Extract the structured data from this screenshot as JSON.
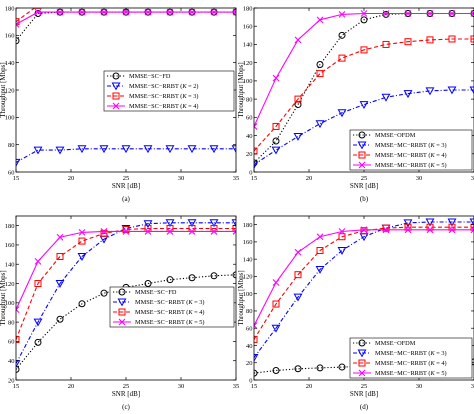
{
  "chart_data": [
    {
      "type": "line",
      "caption": "(a)",
      "xlabel": "SNR [dB]",
      "ylabel": "Throughput [Mbps]",
      "xlim": [
        15,
        35
      ],
      "ylim": [
        60,
        180
      ],
      "xticks": [
        15,
        20,
        25,
        30,
        35
      ],
      "yticks": [
        60,
        80,
        100,
        120,
        140,
        160,
        180
      ],
      "grid": false,
      "legend_position": "center-right",
      "series": [
        {
          "name": "MMSE−SC−FD",
          "color": "#000000",
          "marker": "circle",
          "dash": "dotted",
          "x": [
            15,
            17,
            19,
            21,
            23,
            25,
            27,
            29,
            31,
            33,
            35
          ],
          "y": [
            156,
            176,
            177,
            177,
            177,
            177,
            177,
            177,
            177,
            177,
            177
          ]
        },
        {
          "name": "MMSE−SC−RRBT (K = 2)",
          "color": "#0000ff",
          "marker": "triangle-down",
          "dash": "dashdot",
          "x": [
            15,
            17,
            19,
            21,
            23,
            25,
            27,
            29,
            31,
            33,
            35
          ],
          "y": [
            67,
            76,
            76,
            77,
            77,
            77,
            77,
            77,
            77,
            77,
            77
          ]
        },
        {
          "name": "MMSE−SC−RRBT (K = 3)",
          "color": "#ff0000",
          "marker": "square",
          "dash": "dashed",
          "x": [
            15,
            17,
            19,
            21,
            23,
            25,
            27,
            29,
            31,
            33,
            35
          ],
          "y": [
            170,
            182,
            183,
            183,
            183,
            183,
            183,
            183,
            183,
            183,
            183
          ]
        },
        {
          "name": "MMSE−SC−RRBT (K = 4)",
          "color": "#ff00ff",
          "marker": "x",
          "dash": "solid",
          "x": [
            15,
            17,
            19,
            21,
            23,
            25,
            27,
            29,
            31,
            33,
            35
          ],
          "y": [
            168,
            177,
            177,
            177,
            177,
            177,
            177,
            177,
            177,
            177,
            177
          ]
        }
      ]
    },
    {
      "type": "line",
      "caption": "(b)",
      "xlabel": "SNR [dB]",
      "ylabel": "Throughput [Mbps]",
      "xlim": [
        15,
        35
      ],
      "ylim": [
        0,
        180
      ],
      "xticks": [
        15,
        20,
        25,
        30,
        35
      ],
      "yticks": [
        0,
        20,
        40,
        60,
        80,
        100,
        120,
        140,
        160,
        180
      ],
      "grid": false,
      "legend_position": "bottom-right",
      "series": [
        {
          "name": "MMSE−OFDM",
          "color": "#000000",
          "marker": "circle",
          "dash": "dotted",
          "x": [
            15,
            17,
            19,
            21,
            23,
            25,
            27,
            29,
            31,
            33,
            35
          ],
          "y": [
            10,
            34,
            74,
            118,
            150,
            167,
            173,
            174,
            174,
            174,
            174
          ]
        },
        {
          "name": "MMSE−MC−RRBT (K = 3)",
          "color": "#0000ff",
          "marker": "triangle-down",
          "dash": "dashdot",
          "x": [
            15,
            17,
            19,
            21,
            23,
            25,
            27,
            29,
            31,
            33,
            35
          ],
          "y": [
            8,
            24,
            39,
            53,
            65,
            74,
            82,
            86,
            89,
            90,
            90
          ]
        },
        {
          "name": "MMSE−MC−RRBT (K = 4)",
          "color": "#ff0000",
          "marker": "square",
          "dash": "dashed",
          "x": [
            15,
            17,
            19,
            21,
            23,
            25,
            27,
            29,
            31,
            33,
            35
          ],
          "y": [
            23,
            50,
            80,
            108,
            125,
            134,
            140,
            143,
            145,
            146,
            146
          ]
        },
        {
          "name": "MMSE−MC−RRBT (K = 5)",
          "color": "#ff00ff",
          "marker": "x",
          "dash": "solid",
          "x": [
            15,
            17,
            19,
            21,
            23,
            25,
            27,
            29,
            31,
            33,
            35
          ],
          "y": [
            50,
            103,
            145,
            167,
            173,
            174,
            174,
            174,
            174,
            174,
            174
          ]
        }
      ]
    },
    {
      "type": "line",
      "caption": "(c)",
      "xlabel": "SNR [dB]",
      "ylabel": "Throughput [Mbps]",
      "xlim": [
        15,
        35
      ],
      "ylim": [
        20,
        190
      ],
      "xticks": [
        15,
        20,
        25,
        30,
        35
      ],
      "yticks": [
        20,
        40,
        60,
        80,
        100,
        120,
        140,
        160,
        180
      ],
      "grid": false,
      "legend_position": "bottom-right",
      "series": [
        {
          "name": "MMSE−SC−FD",
          "color": "#000000",
          "marker": "circle",
          "dash": "dotted",
          "x": [
            15,
            17,
            19,
            21,
            23,
            25,
            27,
            29,
            31,
            33,
            35
          ],
          "y": [
            31,
            59,
            83,
            99,
            110,
            116,
            120,
            124,
            126,
            128,
            129
          ]
        },
        {
          "name": "MMSE−SC−RRBT (K = 3)",
          "color": "#0000ff",
          "marker": "triangle-down",
          "dash": "dashdot",
          "x": [
            15,
            17,
            19,
            21,
            23,
            25,
            27,
            29,
            31,
            33,
            35
          ],
          "y": [
            37,
            80,
            120,
            148,
            166,
            177,
            182,
            183,
            183,
            183,
            183
          ]
        },
        {
          "name": "MMSE−SC−RRBT (K = 4)",
          "color": "#ff0000",
          "marker": "square",
          "dash": "dashed",
          "x": [
            15,
            17,
            19,
            21,
            23,
            25,
            27,
            29,
            31,
            33,
            35
          ],
          "y": [
            62,
            120,
            148,
            164,
            172,
            176,
            177,
            177,
            177,
            177,
            177
          ]
        },
        {
          "name": "MMSE−SC−RRBT (K = 5)",
          "color": "#ff00ff",
          "marker": "x",
          "dash": "solid",
          "x": [
            15,
            17,
            19,
            21,
            23,
            25,
            27,
            29,
            31,
            33,
            35
          ],
          "y": [
            93,
            143,
            168,
            173,
            174,
            174,
            174,
            174,
            174,
            174,
            174
          ]
        }
      ]
    },
    {
      "type": "line",
      "caption": "(d)",
      "xlabel": "SNR [dB]",
      "ylabel": "Throughput [Mbps]",
      "xlim": [
        15,
        35
      ],
      "ylim": [
        0,
        190
      ],
      "xticks": [
        15,
        20,
        25,
        30,
        35
      ],
      "yticks": [
        0,
        20,
        40,
        60,
        80,
        100,
        120,
        140,
        160,
        180
      ],
      "grid": false,
      "legend_position": "bottom-right",
      "series": [
        {
          "name": "MMSE−OFDM",
          "color": "#000000",
          "marker": "circle",
          "dash": "dotted",
          "x": [
            15,
            17,
            19,
            21,
            23,
            25,
            27,
            29,
            31,
            33,
            35
          ],
          "y": [
            8,
            11,
            13,
            14,
            15,
            16,
            17,
            18,
            19,
            20,
            21
          ]
        },
        {
          "name": "MMSE−MC−RRBT (K = 3)",
          "color": "#0000ff",
          "marker": "triangle-down",
          "dash": "dashdot",
          "x": [
            15,
            17,
            19,
            21,
            23,
            25,
            27,
            29,
            31,
            33,
            35
          ],
          "y": [
            26,
            60,
            96,
            128,
            150,
            166,
            176,
            182,
            183,
            183,
            183
          ]
        },
        {
          "name": "MMSE−MC−RRBT (K = 4)",
          "color": "#ff0000",
          "marker": "square",
          "dash": "dashed",
          "x": [
            15,
            17,
            19,
            21,
            23,
            25,
            27,
            29,
            31,
            33,
            35
          ],
          "y": [
            47,
            88,
            122,
            150,
            166,
            173,
            176,
            177,
            177,
            177,
            177
          ]
        },
        {
          "name": "MMSE−MC−RRBT (K = 5)",
          "color": "#ff00ff",
          "marker": "x",
          "dash": "solid",
          "x": [
            15,
            17,
            19,
            21,
            23,
            25,
            27,
            29,
            31,
            33,
            35
          ],
          "y": [
            63,
            113,
            148,
            166,
            172,
            174,
            174,
            174,
            174,
            174,
            174
          ]
        }
      ]
    }
  ]
}
